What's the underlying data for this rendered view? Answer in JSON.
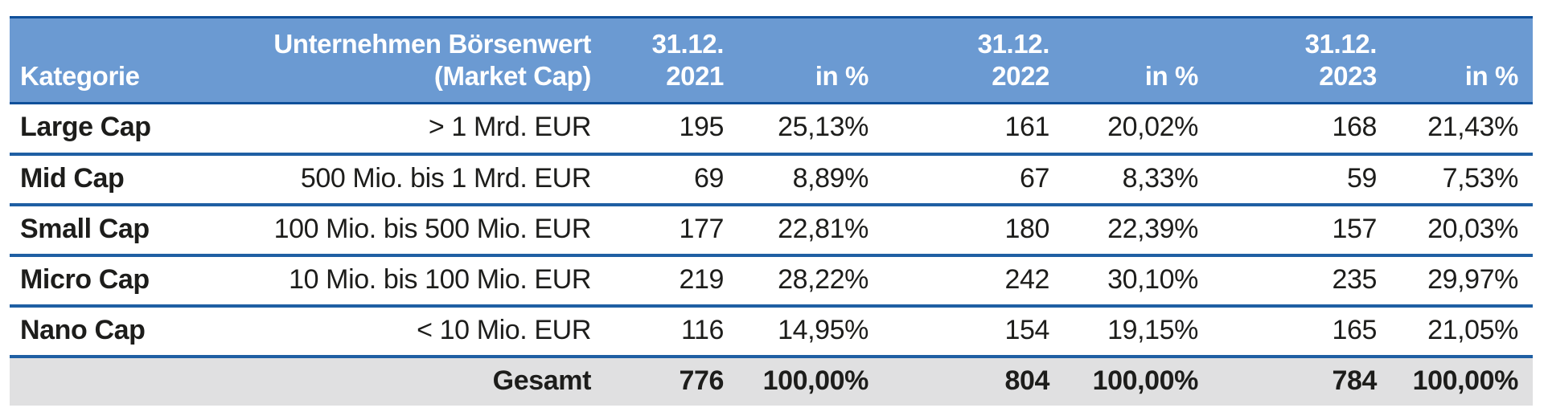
{
  "colors": {
    "header_bg": "#6b9ad2",
    "header_border": "#10509a",
    "row_separator": "#1f5fa3",
    "footer_bg": "#e0e0e1",
    "text": "#1d1d1b",
    "header_text": "#ffffff"
  },
  "table": {
    "header": [
      {
        "lines": [
          "Kategorie"
        ]
      },
      {
        "lines": [
          "Unternehmen Börsenwert",
          "(Market Cap)"
        ]
      },
      {
        "lines": [
          "31.12.",
          "2021"
        ]
      },
      {
        "lines": [
          "in %"
        ]
      },
      {
        "lines": [
          "31.12.",
          "2022"
        ]
      },
      {
        "lines": [
          "in %"
        ]
      },
      {
        "lines": [
          "31.12.",
          "2023"
        ]
      },
      {
        "lines": [
          "in %"
        ]
      }
    ],
    "rows": [
      {
        "kategorie": "Large Cap",
        "market_cap": "> 1 Mrd. EUR",
        "y2021": "195",
        "pct2021": "25,13%",
        "y2022": "161",
        "pct2022": "20,02%",
        "y2023": "168",
        "pct2023": "21,43%"
      },
      {
        "kategorie": "Mid Cap",
        "market_cap": "500 Mio. bis 1 Mrd. EUR",
        "y2021": "69",
        "pct2021": "8,89%",
        "y2022": "67",
        "pct2022": "8,33%",
        "y2023": "59",
        "pct2023": "7,53%"
      },
      {
        "kategorie": "Small Cap",
        "market_cap": "100 Mio. bis 500 Mio. EUR",
        "y2021": "177",
        "pct2021": "22,81%",
        "y2022": "180",
        "pct2022": "22,39%",
        "y2023": "157",
        "pct2023": "20,03%"
      },
      {
        "kategorie": "Micro Cap",
        "market_cap": "10 Mio. bis 100 Mio. EUR",
        "y2021": "219",
        "pct2021": "28,22%",
        "y2022": "242",
        "pct2022": "30,10%",
        "y2023": "235",
        "pct2023": "29,97%"
      },
      {
        "kategorie": "Nano Cap",
        "market_cap": "< 10 Mio. EUR",
        "y2021": "116",
        "pct2021": "14,95%",
        "y2022": "154",
        "pct2022": "19,15%",
        "y2023": "165",
        "pct2023": "21,05%"
      }
    ],
    "footer": {
      "label": "Gesamt",
      "y2021": "776",
      "pct2021": "100,00%",
      "y2022": "804",
      "pct2022": "100,00%",
      "y2023": "784",
      "pct2023": "100,00%"
    }
  }
}
